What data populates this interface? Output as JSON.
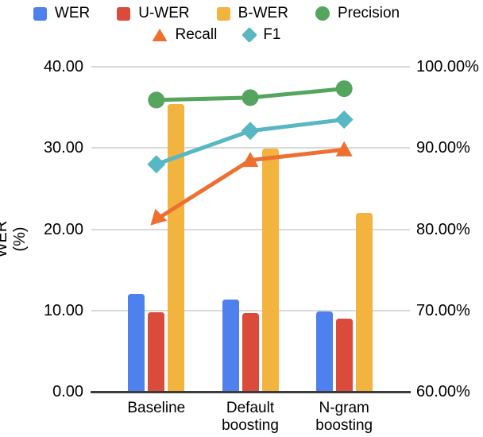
{
  "legend": {
    "rows": [
      [
        {
          "label": "WER",
          "marker": "square",
          "color": "#4E80EE"
        },
        {
          "label": "U-WER",
          "marker": "square",
          "color": "#DB4B3C"
        },
        {
          "label": "B-WER",
          "marker": "square",
          "color": "#F2B43E"
        },
        {
          "label": "Precision",
          "marker": "circle",
          "color": "#55A55E"
        }
      ],
      [
        {
          "label": "Recall",
          "marker": "triangle",
          "color": "#EE7031"
        },
        {
          "label": "F1",
          "marker": "diamond",
          "color": "#57B7C3"
        }
      ]
    ]
  },
  "chart_data": {
    "type": "combo-bar-line",
    "categories": [
      "Baseline",
      "Default boosting",
      "N-gram boosting"
    ],
    "bar_series": [
      {
        "name": "WER",
        "axis": "left",
        "color": "#4E80EE",
        "values": [
          12.0,
          11.3,
          9.9
        ]
      },
      {
        "name": "U-WER",
        "axis": "left",
        "color": "#DB4B3C",
        "values": [
          9.8,
          9.7,
          9.0
        ]
      },
      {
        "name": "B-WER",
        "axis": "left",
        "color": "#F2B43E",
        "values": [
          35.4,
          29.9,
          22.0
        ]
      }
    ],
    "line_series": [
      {
        "name": "Precision",
        "axis": "right",
        "marker": "circle",
        "color": "#55A55E",
        "values": [
          95.9,
          96.2,
          97.3
        ]
      },
      {
        "name": "Recall",
        "axis": "right",
        "marker": "triangle",
        "color": "#EE7031",
        "values": [
          81.2,
          88.5,
          89.8
        ]
      },
      {
        "name": "F1",
        "axis": "right",
        "marker": "diamond",
        "color": "#57B7C3",
        "values": [
          88.0,
          92.1,
          93.5
        ]
      }
    ],
    "left_axis": {
      "title": "WER (%)",
      "min": 0,
      "max": 40,
      "ticks": [
        {
          "label": "40.00",
          "value": 40
        },
        {
          "label": "30.00",
          "value": 30
        },
        {
          "label": "20.00",
          "value": 20
        },
        {
          "label": "10.00",
          "value": 10
        },
        {
          "label": "0.00",
          "value": 0
        }
      ]
    },
    "right_axis": {
      "min": 60,
      "max": 100,
      "ticks": [
        {
          "label": "100.00%",
          "value": 100
        },
        {
          "label": "90.00%",
          "value": 90
        },
        {
          "label": "80.00%",
          "value": 80
        },
        {
          "label": "70.00%",
          "value": 70
        },
        {
          "label": "60.00%",
          "value": 60
        }
      ]
    },
    "grid": true,
    "legend_position": "top",
    "colors": {
      "gridline": "#d9d9d9",
      "axis_line": "#3b3b3b",
      "text": "#000000"
    }
  }
}
